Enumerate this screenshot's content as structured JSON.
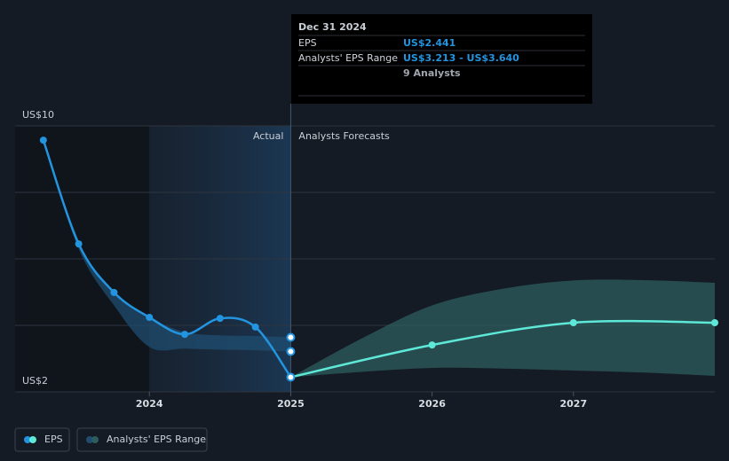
{
  "chart_data": {
    "type": "line",
    "xlim": [
      2023.05,
      2028.0
    ],
    "xticks": [
      2024,
      2025,
      2026,
      2027
    ],
    "ylim": [
      2,
      10
    ],
    "yticks": [
      {
        "value": 2,
        "label": "US$2"
      },
      4,
      6,
      8,
      {
        "value": 10,
        "label": "US$10"
      }
    ],
    "grid": true,
    "divider_x": 2025,
    "region_labels": {
      "actual": "Actual",
      "forecast": "Analysts Forecasts"
    },
    "series": [
      {
        "name": "EPS",
        "color": "#2394df",
        "x": [
          2023.25,
          2023.5,
          2023.75,
          2024.0,
          2024.25,
          2024.5,
          2024.75,
          2025.0
        ],
        "values": [
          9.57,
          6.45,
          4.99,
          4.24,
          3.73,
          4.21,
          3.95,
          2.441
        ]
      },
      {
        "name": "Analysts' EPS Range",
        "color": "#2e5d5e",
        "x": [
          2025.0,
          2025.5,
          2026.0,
          2026.5,
          2027.0,
          2027.5,
          2028.0
        ],
        "low": [
          2.441,
          2.6,
          2.72,
          2.7,
          2.64,
          2.58,
          2.48
        ],
        "high": [
          2.441,
          3.6,
          4.6,
          5.1,
          5.35,
          5.36,
          5.28
        ]
      }
    ],
    "forecast": {
      "color": "#5ee8d8",
      "x": [
        2025.0,
        2026.0,
        2027.0,
        2028.0
      ],
      "values": [
        2.441,
        3.41,
        4.08,
        4.08
      ]
    },
    "past_range": {
      "color": "#1f4d70",
      "x": [
        2023.25,
        2023.5,
        2023.75,
        2024.0,
        2024.25,
        2024.5,
        2024.75,
        2025.0
      ],
      "low": [
        9.57,
        6.3,
        4.6,
        3.35,
        3.3,
        3.27,
        3.25,
        3.213
      ],
      "high": [
        9.57,
        6.45,
        4.99,
        4.24,
        3.8,
        3.7,
        3.68,
        3.64
      ]
    },
    "tooltip": {
      "title": "Dec 31 2024",
      "rows": [
        {
          "label": "EPS",
          "value": "US$2.441"
        },
        {
          "label": "Analysts' EPS Range",
          "value": "US$3.213 - US$3.640"
        },
        {
          "value": "9 Analysts"
        }
      ]
    }
  }
}
